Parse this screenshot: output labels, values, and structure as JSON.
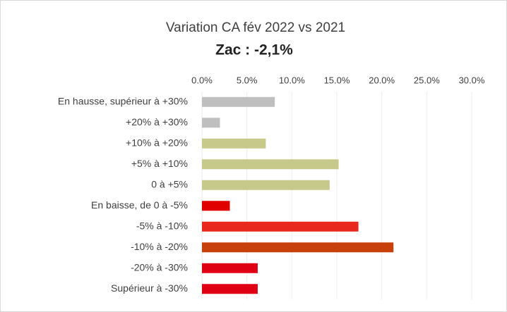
{
  "chart_data": {
    "type": "hbar",
    "title": "Variation CA fév 2022 vs 2021",
    "subtitle": "Zac : -2,1%",
    "categories": [
      "En hausse, supérieur à +30%",
      "+20% à +30%",
      "+10% à +20%",
      "+5% à +10%",
      "0 à +5%",
      "En baisse, de 0 à -5%",
      "-5% à -10%",
      "-10% à -20%",
      "-20% à -30%",
      "Supérieur à -30%"
    ],
    "values": [
      8.1,
      2.0,
      7.1,
      15.2,
      14.2,
      3.1,
      17.4,
      21.3,
      6.2,
      6.2
    ],
    "colors": [
      "#bfbfbf",
      "#bfbfbf",
      "#c6c98a",
      "#c6c98a",
      "#c6c98a",
      "#e00000",
      "#e8281c",
      "#c8400c",
      "#e00014",
      "#e00014"
    ],
    "xlim": [
      0,
      30
    ],
    "xticks": [
      {
        "value": 0,
        "label": "0.0%"
      },
      {
        "value": 5,
        "label": "5.0%"
      },
      {
        "value": 10,
        "label": "10.0%"
      },
      {
        "value": 15,
        "label": "15.0%"
      },
      {
        "value": 20,
        "label": "20.0%"
      },
      {
        "value": 25,
        "label": "25.0%"
      },
      {
        "value": 30,
        "label": "30.0%"
      }
    ],
    "grid": true
  }
}
